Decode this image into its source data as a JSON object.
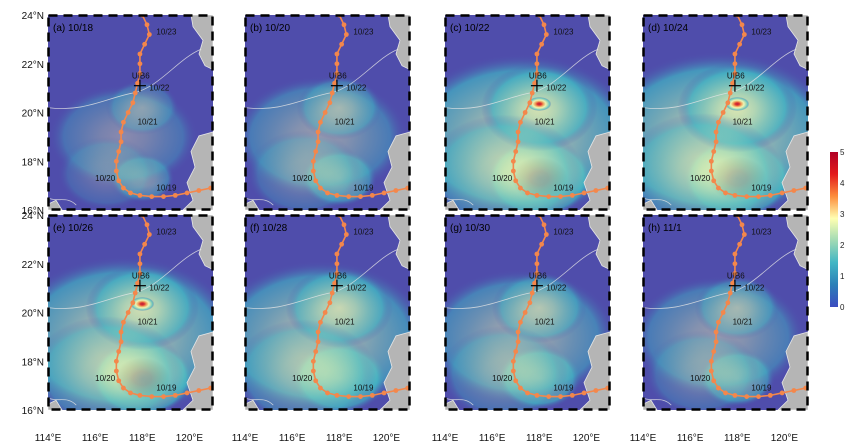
{
  "chart_data": {
    "type": "heatmap",
    "layout": "2x4 grid of map panels",
    "panels": [
      {
        "label": "(a) 10/18",
        "intensity": 0.25
      },
      {
        "label": "(b) 10/20",
        "intensity": 0.45
      },
      {
        "label": "(c) 10/22",
        "intensity": 0.95
      },
      {
        "label": "(d) 10/24",
        "intensity": 1.0
      },
      {
        "label": "(e) 10/26",
        "intensity": 0.9
      },
      {
        "label": "(f) 10/28",
        "intensity": 0.8
      },
      {
        "label": "(g) 10/30",
        "intensity": 0.6
      },
      {
        "label": "(h) 11/1",
        "intensity": 0.45
      }
    ],
    "axes": {
      "x_range": [
        114,
        121
      ],
      "y_range": [
        16,
        24
      ],
      "x_ticks": [
        114,
        116,
        118,
        120
      ],
      "y_ticks": [
        16,
        18,
        20,
        22,
        24
      ],
      "x_tick_labels": [
        "114°E",
        "116°E",
        "118°E",
        "120°E"
      ],
      "y_tick_labels": [
        "16°N",
        "18°N",
        "20°N",
        "22°N",
        "24°N"
      ]
    },
    "station": {
      "name": "UIB6",
      "lon": 117.9,
      "lat": 21.1
    },
    "track": {
      "points": [
        {
          "lon": 118.0,
          "lat": 24.0
        },
        {
          "lon": 118.2,
          "lat": 23.6
        },
        {
          "lon": 118.3,
          "lat": 23.2
        },
        {
          "lon": 118.1,
          "lat": 22.8
        },
        {
          "lon": 117.9,
          "lat": 22.4
        },
        {
          "lon": 117.9,
          "lat": 22.0
        },
        {
          "lon": 117.9,
          "lat": 21.6
        },
        {
          "lon": 117.8,
          "lat": 21.2
        },
        {
          "lon": 117.7,
          "lat": 20.8
        },
        {
          "lon": 117.6,
          "lat": 20.4
        },
        {
          "lon": 117.4,
          "lat": 20.0
        },
        {
          "lon": 117.2,
          "lat": 19.6
        },
        {
          "lon": 117.1,
          "lat": 19.2
        },
        {
          "lon": 117.1,
          "lat": 18.8
        },
        {
          "lon": 117.0,
          "lat": 18.4
        },
        {
          "lon": 116.9,
          "lat": 18.0
        },
        {
          "lon": 116.9,
          "lat": 17.6
        },
        {
          "lon": 117.0,
          "lat": 17.2
        },
        {
          "lon": 117.2,
          "lat": 16.9
        },
        {
          "lon": 117.5,
          "lat": 16.7
        },
        {
          "lon": 117.9,
          "lat": 16.6
        },
        {
          "lon": 118.4,
          "lat": 16.55
        },
        {
          "lon": 118.9,
          "lat": 16.55
        },
        {
          "lon": 119.4,
          "lat": 16.6
        },
        {
          "lon": 119.9,
          "lat": 16.7
        },
        {
          "lon": 120.4,
          "lat": 16.8
        },
        {
          "lon": 120.9,
          "lat": 16.9
        }
      ],
      "date_labels": [
        {
          "text": "10/23",
          "lon": 118.6,
          "lat": 23.2
        },
        {
          "text": "10/22",
          "lon": 118.3,
          "lat": 20.9
        },
        {
          "text": "10/21",
          "lon": 117.8,
          "lat": 19.5
        },
        {
          "text": "10/20",
          "lon": 116.0,
          "lat": 17.2
        },
        {
          "text": "10/19",
          "lon": 118.6,
          "lat": 16.8
        }
      ]
    },
    "hotspots": [
      {
        "lon": 118.0,
        "lat": 17.3,
        "strength": 1.0,
        "spread": 1.0
      },
      {
        "lon": 117.2,
        "lat": 19.0,
        "strength": 0.75,
        "spread": 2.2
      },
      {
        "lon": 118.0,
        "lat": 20.2,
        "strength": 0.7,
        "spread": 1.2
      },
      {
        "lon": 116.5,
        "lat": 17.5,
        "strength": 0.5,
        "spread": 1.8
      }
    ],
    "colorbar": {
      "ticks": [
        0,
        1,
        2,
        3,
        4,
        5
      ],
      "tick_labels": [
        "0",
        "1",
        "2",
        "3",
        "4",
        "5"
      ],
      "colors": [
        "#3b4cc0",
        "#2c7fb8",
        "#41b6c4",
        "#a1dab4",
        "#ffffb2",
        "#fd8d3c",
        "#e31a1c",
        "#b10026"
      ]
    },
    "colors": {
      "ocean": "#4f4dab",
      "land": "#b5b5b5",
      "track": "#f4874b",
      "coast": "#e6e6e6"
    }
  }
}
